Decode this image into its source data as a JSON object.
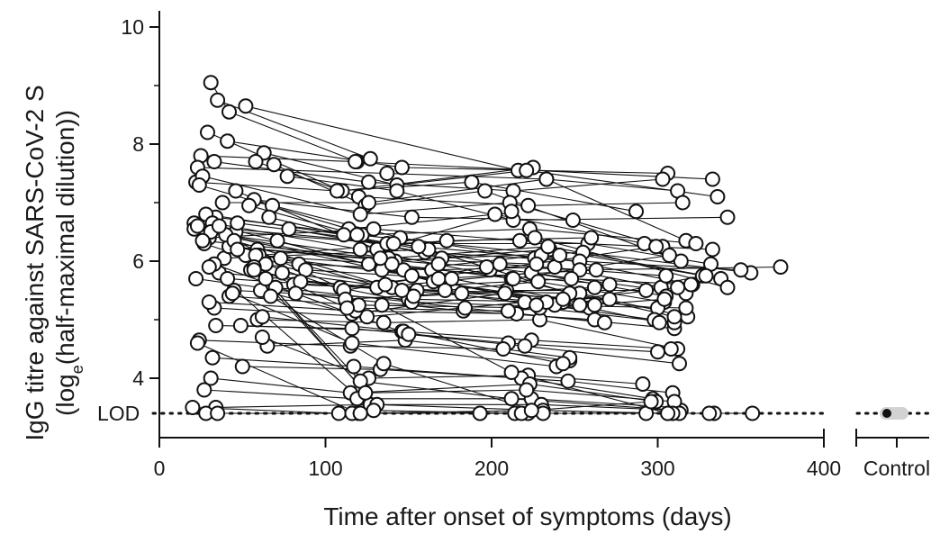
{
  "chart_data": {
    "type": "line",
    "title": "",
    "xlabel": "Time after onset of symptoms (days)",
    "ylabel_line1": "IgG titre against SARS-CoV-2 S",
    "ylabel_line2": "(log",
    "ylabel_sub": "e",
    "ylabel_line2_rest": "(half-maximal dilution))",
    "xlim": [
      0,
      400
    ],
    "ylim": [
      3,
      10
    ],
    "x_ticks": [
      "0",
      "100",
      "200",
      "300",
      "400"
    ],
    "y_ticks": [
      "4",
      "6",
      "8",
      "10"
    ],
    "lod": {
      "label": "LOD",
      "value": 3.4
    },
    "control": {
      "label": "Control",
      "value": 3.4
    },
    "grid": false,
    "series": [
      {
        "x": [
          31,
          42,
          119
        ],
        "y": [
          9.05,
          8.55,
          7.7
        ]
      },
      {
        "x": [
          35,
          127
        ],
        "y": [
          8.75,
          7.75
        ]
      },
      {
        "x": [
          52,
          216
        ],
        "y": [
          8.65,
          7.55
        ]
      },
      {
        "x": [
          41,
          146,
          306
        ],
        "y": [
          8.05,
          7.6,
          7.5
        ]
      },
      {
        "x": [
          29,
          110,
          225
        ],
        "y": [
          8.2,
          7.2,
          7.6
        ]
      },
      {
        "x": [
          25,
          118,
          333
        ],
        "y": [
          7.8,
          7.7,
          7.4
        ]
      },
      {
        "x": [
          23,
          137,
          233,
          312
        ],
        "y": [
          7.6,
          7.5,
          7.4,
          7.2
        ]
      },
      {
        "x": [
          33,
          126,
          213,
          303
        ],
        "y": [
          7.7,
          7.35,
          7.2,
          7.4
        ]
      },
      {
        "x": [
          63,
          143,
          221,
          336
        ],
        "y": [
          7.85,
          7.3,
          7.55,
          7.1
        ]
      },
      {
        "x": [
          58,
          120,
          222,
          315
        ],
        "y": [
          7.7,
          7.1,
          6.95,
          7.0
        ]
      },
      {
        "x": [
          69,
          124,
          196,
          314
        ],
        "y": [
          7.65,
          6.95,
          7.2,
          6.0
        ]
      },
      {
        "x": [
          77,
          143,
          213,
          342
        ],
        "y": [
          7.45,
          7.2,
          6.7,
          6.75
        ]
      },
      {
        "x": [
          22,
          107,
          188,
          287
        ],
        "y": [
          7.35,
          7.2,
          7.35,
          6.85
        ]
      },
      {
        "x": [
          26,
          121,
          211,
          303
        ],
        "y": [
          7.45,
          6.8,
          7.0,
          6.25
        ]
      },
      {
        "x": [
          38,
          126,
          233,
          317
        ],
        "y": [
          7.0,
          7.0,
          7.4,
          6.35
        ]
      },
      {
        "x": [
          46,
          131,
          212
        ],
        "y": [
          7.2,
          6.2,
          6.85
        ]
      },
      {
        "x": [
          57,
          152,
          249
        ],
        "y": [
          7.05,
          6.75,
          6.7
        ]
      },
      {
        "x": [
          68,
          145,
          226
        ],
        "y": [
          6.95,
          6.4,
          6.05
        ]
      },
      {
        "x": [
          24,
          114,
          202,
          292
        ],
        "y": [
          7.3,
          6.55,
          6.8,
          6.3
        ]
      },
      {
        "x": [
          34,
          122,
          223,
          323
        ],
        "y": [
          6.75,
          6.45,
          6.55,
          6.3
        ]
      },
      {
        "x": [
          21,
          109,
          199,
          299
        ],
        "y": [
          6.65,
          5.55,
          5.85,
          6.25
        ]
      },
      {
        "x": [
          30,
          129,
          217,
          333
        ],
        "y": [
          6.4,
          6.55,
          6.35,
          6.2
        ]
      },
      {
        "x": [
          46,
          137,
          258,
          332
        ],
        "y": [
          6.5,
          6.3,
          6.3,
          5.95
        ]
      },
      {
        "x": [
          59,
          142,
          235,
          338
        ],
        "y": [
          6.2,
          6.0,
          6.2,
          5.7
        ]
      },
      {
        "x": [
          78,
          160,
          253
        ],
        "y": [
          6.55,
          6.15,
          6.0
        ]
      },
      {
        "x": [
          63,
          147,
          230,
          321
        ],
        "y": [
          6.0,
          5.85,
          6.1,
          5.6
        ]
      },
      {
        "x": [
          27,
          111,
          197,
          317
        ],
        "y": [
          6.3,
          5.5,
          5.9,
          5.45
        ]
      },
      {
        "x": [
          84,
          164,
          238,
          302
        ],
        "y": [
          5.95,
          5.85,
          5.9,
          5.55
        ]
      },
      {
        "x": [
          22,
          112,
          209,
          293
        ],
        "y": [
          5.7,
          5.35,
          5.5,
          5.5
        ]
      },
      {
        "x": [
          36,
          131,
          224,
          305
        ],
        "y": [
          5.8,
          5.55,
          5.8,
          5.4
        ]
      },
      {
        "x": [
          74,
          155,
          253,
          318
        ],
        "y": [
          5.8,
          5.5,
          5.45,
          5.05
        ]
      },
      {
        "x": [
          81,
          172,
          228,
          304
        ],
        "y": [
          5.6,
          5.5,
          5.65,
          5.3
        ]
      },
      {
        "x": [
          61,
          116,
          208,
          300
        ],
        "y": [
          5.5,
          5.1,
          5.45,
          5.2
        ]
      },
      {
        "x": [
          33,
          125,
          220,
          298
        ],
        "y": [
          5.2,
          5.05,
          5.3,
          5.0
        ]
      },
      {
        "x": [
          45,
          150,
          243,
          301
        ],
        "y": [
          5.5,
          5.35,
          5.3,
          4.95
        ]
      },
      {
        "x": [
          30,
          118,
          215,
          310
        ],
        "y": [
          5.3,
          5.15,
          5.1,
          4.85
        ]
      },
      {
        "x": [
          59,
          135,
          229,
          312
        ],
        "y": [
          5.0,
          4.95,
          5.0,
          4.5
        ]
      },
      {
        "x": [
          42,
          120,
          229,
          310
        ],
        "y": [
          5.4,
          5.25,
          5.2,
          4.95
        ]
      },
      {
        "x": [
          34,
          116,
          210,
          300
        ],
        "y": [
          4.9,
          4.85,
          4.6,
          4.45
        ]
      },
      {
        "x": [
          49,
          146,
          224,
          308
        ],
        "y": [
          4.9,
          4.8,
          4.65,
          4.5
        ]
      },
      {
        "x": [
          65,
          148,
          247
        ],
        "y": [
          4.55,
          4.65,
          4.3
        ]
      },
      {
        "x": [
          24,
          115,
          207,
          247
        ],
        "y": [
          4.65,
          4.55,
          4.5,
          4.35
        ]
      },
      {
        "x": [
          62,
          126,
          222,
          291
        ],
        "y": [
          4.7,
          4.0,
          4.05,
          3.9
        ]
      },
      {
        "x": [
          32,
          117,
          218,
          297
        ],
        "y": [
          4.35,
          4.2,
          4.0,
          3.65
        ]
      },
      {
        "x": [
          50,
          133,
          246,
          309
        ],
        "y": [
          4.2,
          4.15,
          3.95,
          3.75
        ]
      },
      {
        "x": [
          31,
          115,
          223,
          299
        ],
        "y": [
          4.0,
          3.75,
          3.9,
          3.6
        ]
      },
      {
        "x": [
          27,
          119,
          224,
          311
        ],
        "y": [
          3.8,
          3.65,
          3.65,
          3.5
        ]
      },
      {
        "x": [
          34,
          127,
          230,
          313
        ],
        "y": [
          3.5,
          3.55,
          3.55,
          3.45
        ]
      },
      {
        "x": [
          20,
          108,
          193,
          293
        ],
        "y": [
          3.5,
          3.4,
          3.4,
          3.4
        ]
      },
      {
        "x": [
          55,
          152,
          259
        ],
        "y": [
          5.85,
          5.3,
          5.2
        ]
      },
      {
        "x": [
          71,
          165,
          262
        ],
        "y": [
          6.35,
          5.65,
          5.25
        ]
      },
      {
        "x": [
          39,
          162,
          247
        ],
        "y": [
          6.05,
          6.2,
          5.45
        ]
      },
      {
        "x": [
          21,
          134,
          238,
          327
        ],
        "y": [
          6.55,
          5.85,
          5.25,
          5.75
        ]
      },
      {
        "x": [
          66,
          170,
          255,
          356
        ],
        "y": [
          6.75,
          6.05,
          6.15,
          5.8
        ]
      },
      {
        "x": [
          47,
          156,
          253,
          350
        ],
        "y": [
          6.65,
          6.25,
          6.0,
          5.85
        ]
      },
      {
        "x": [
          42,
          168,
          253,
          374
        ],
        "y": [
          6.25,
          5.95,
          5.85,
          5.9
        ]
      },
      {
        "x": [
          28,
          111,
          205,
          305
        ],
        "y": [
          6.8,
          6.45,
          5.95,
          5.75
        ]
      },
      {
        "x": [
          54,
          119,
          241
        ],
        "y": [
          6.95,
          6.45,
          6.1
        ]
      },
      {
        "x": [
          32,
          121,
          212,
          310
        ],
        "y": [
          6.65,
          6.2,
          5.7,
          5.05
        ]
      },
      {
        "x": [
          23,
          141,
          226,
          342
        ],
        "y": [
          6.6,
          6.3,
          6.4,
          5.55
        ]
      },
      {
        "x": [
          40,
          138,
          234,
          329
        ],
        "y": [
          6.45,
          6.05,
          6.25,
          5.75
        ]
      },
      {
        "x": [
          52,
          140,
          213,
          307
        ],
        "y": [
          6.1,
          5.95,
          5.7,
          6.1
        ]
      },
      {
        "x": [
          60,
          173,
          260
        ],
        "y": [
          6.1,
          6.35,
          6.4
        ]
      },
      {
        "x": [
          31,
          126,
          271
        ],
        "y": [
          6.5,
          5.95,
          5.6
        ]
      },
      {
        "x": [
          45,
          140,
          248,
          320
        ],
        "y": [
          6.35,
          5.55,
          5.7,
          5.6
        ]
      },
      {
        "x": [
          26,
          133,
          227
        ],
        "y": [
          6.35,
          6.05,
          5.95
        ]
      },
      {
        "x": [
          36,
          152,
          233,
          312
        ],
        "y": [
          6.6,
          5.75,
          5.3,
          5.55
        ]
      },
      {
        "x": [
          58,
          168,
          263
        ],
        "y": [
          6.1,
          5.7,
          5.85
        ]
      },
      {
        "x": [
          64,
          136,
          227,
          317
        ],
        "y": [
          5.95,
          5.6,
          5.25,
          5.2
        ]
      },
      {
        "x": [
          73,
          153,
          262
        ],
        "y": [
          6.05,
          5.4,
          5.55
        ]
      },
      {
        "x": [
          88,
          176,
          243
        ],
        "y": [
          5.85,
          5.7,
          5.35
        ]
      },
      {
        "x": [
          41,
          146,
          253
        ],
        "y": [
          5.7,
          5.5,
          5.25
        ]
      },
      {
        "x": [
          57,
          113,
          210,
          304
        ],
        "y": [
          5.9,
          5.2,
          5.15,
          5.35
        ]
      },
      {
        "x": [
          85,
          182,
          271
        ],
        "y": [
          5.65,
          5.45,
          5.35
        ]
      },
      {
        "x": [
          82,
          183,
          262
        ],
        "y": [
          5.45,
          5.15,
          5.0
        ]
      },
      {
        "x": [
          70,
          184,
          268
        ],
        "y": [
          5.55,
          5.2,
          4.95
        ]
      },
      {
        "x": [
          44,
          116,
          239
        ],
        "y": [
          5.45,
          4.6,
          4.2
        ]
      },
      {
        "x": [
          62,
          147,
          243
        ],
        "y": [
          5.05,
          4.8,
          4.25
        ]
      },
      {
        "x": [
          33,
          150,
          220,
          313
        ],
        "y": [
          5.95,
          4.75,
          4.55,
          4.25
        ]
      },
      {
        "x": [
          47,
          121,
          212,
          314
        ],
        "y": [
          6.2,
          3.95,
          3.65,
          3.45
        ]
      },
      {
        "x": [
          64,
          124,
          221,
          310
        ],
        "y": [
          5.7,
          3.75,
          3.8,
          3.6
        ]
      },
      {
        "x": [
          57,
          131,
          231,
          306
        ],
        "y": [
          5.85,
          3.55,
          3.45,
          3.4
        ]
      },
      {
        "x": [
          30,
          129,
          214,
          313
        ],
        "y": [
          5.9,
          3.45,
          3.4,
          3.4
        ]
      },
      {
        "x": [
          67,
          135,
          231,
          334
        ],
        "y": [
          5.4,
          4.25,
          3.4,
          3.4
        ]
      },
      {
        "x": [
          23,
          120,
          222,
          357
        ],
        "y": [
          4.6,
          3.4,
          3.4,
          3.4
        ]
      },
      {
        "x": [
          28,
          116,
          218,
          331
        ],
        "y": [
          3.4,
          3.4,
          3.4,
          3.4
        ]
      },
      {
        "x": [
          35,
          121,
          193,
          309
        ],
        "y": [
          3.4,
          3.4,
          3.4,
          3.4
        ]
      },
      {
        "x": [
          121,
          224,
          296
        ],
        "y": [
          3.4,
          3.45,
          3.6
        ]
      },
      {
        "x": [
          134,
          212,
          306
        ],
        "y": [
          5.25,
          4.1,
          3.4
        ]
      }
    ]
  }
}
